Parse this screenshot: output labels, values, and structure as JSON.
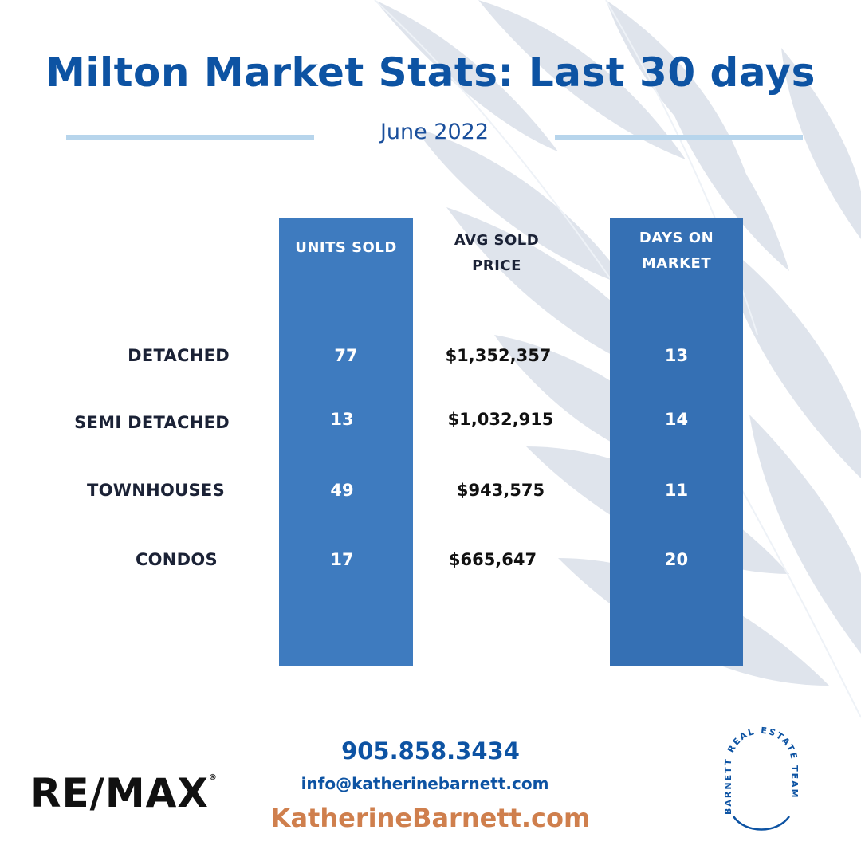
{
  "title": "Milton Market Stats: Last 30 days",
  "subtitle": "June 2022",
  "columns": {
    "units_sold": "UNITS SOLD",
    "avg_price_line1": "AVG SOLD",
    "avg_price_line2": "PRICE",
    "days_line1": "DAYS ON",
    "days_line2": "MARKET"
  },
  "rows": [
    {
      "label": "DETACHED",
      "units": "77",
      "price": "$1,352,357",
      "days": "13"
    },
    {
      "label": "SEMI DETACHED",
      "units": "13",
      "price": "$1,032,915",
      "days": "14"
    },
    {
      "label": "TOWNHOUSES",
      "units": "49",
      "price": "$943,575",
      "days": "11"
    },
    {
      "label": "CONDOS",
      "units": "17",
      "price": "$665,647",
      "days": "20"
    }
  ],
  "contact": {
    "phone": "905.858.3434",
    "email": "info@katherinebarnett.com",
    "website": "KatherineBarnett.com"
  },
  "logos": {
    "left_brand": "RE/MAX",
    "left_mark": "®",
    "right_brand": "BARNETT REAL ESTATE TEAM"
  },
  "colors": {
    "title_blue": "#0d53a3",
    "bar_blue": "#3e7bbf",
    "accent_orange": "#cf7f4d",
    "rule_blue": "#b7d5ec"
  }
}
